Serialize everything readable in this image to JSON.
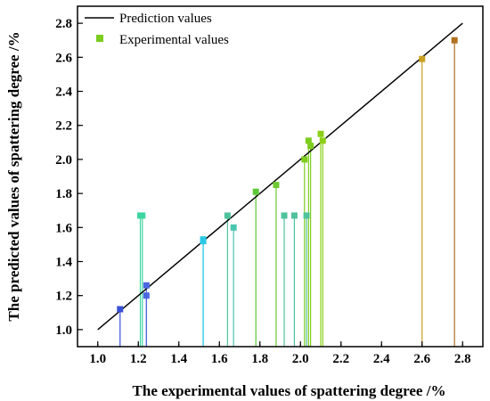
{
  "chart_data": {
    "type": "scatter",
    "title": "",
    "xlabel": "The experimental values of spattering degree /%",
    "ylabel": "The predicted values of spattering degree /%",
    "xlim": [
      0.9,
      2.9
    ],
    "ylim": [
      0.9,
      2.9
    ],
    "xticks": [
      1.0,
      1.2,
      1.4,
      1.6,
      1.8,
      2.0,
      2.2,
      2.4,
      2.6,
      2.8
    ],
    "yticks": [
      1.0,
      1.2,
      1.4,
      1.6,
      1.8,
      2.0,
      2.2,
      2.4,
      2.6,
      2.8
    ],
    "tick_labels_x": [
      "1.0",
      "1.2",
      "1.4",
      "1.6",
      "1.8",
      "2.0",
      "2.2",
      "2.4",
      "2.6",
      "2.8"
    ],
    "tick_labels_y": [
      "1.0",
      "1.2",
      "1.4",
      "1.6",
      "1.8",
      "2.0",
      "2.2",
      "2.4",
      "2.6",
      "2.8"
    ],
    "grid": false,
    "legend_position": "top-left",
    "series": [
      {
        "name": "Prediction values",
        "kind": "line",
        "color": "#000000",
        "x": [
          1.0,
          2.8
        ],
        "y": [
          1.0,
          2.8
        ]
      },
      {
        "name": "Experimental values",
        "kind": "scatter",
        "legend_color": "#7ccd1e",
        "points": [
          {
            "x": 1.11,
            "y": 1.12,
            "color": "#3a4fd6"
          },
          {
            "x": 1.21,
            "y": 1.67,
            "color": "#3ed6a0"
          },
          {
            "x": 1.22,
            "y": 1.67,
            "color": "#3ed6a0"
          },
          {
            "x": 1.24,
            "y": 1.2,
            "color": "#4a68e0"
          },
          {
            "x": 1.24,
            "y": 1.26,
            "color": "#4a68e0"
          },
          {
            "x": 1.52,
            "y": 1.53,
            "color": "#2bc8e6"
          },
          {
            "x": 1.52,
            "y": 1.52,
            "color": "#2bc8e6"
          },
          {
            "x": 1.64,
            "y": 1.67,
            "color": "#4ec29a"
          },
          {
            "x": 1.67,
            "y": 1.6,
            "color": "#48c6b0"
          },
          {
            "x": 1.78,
            "y": 1.81,
            "color": "#5cc838"
          },
          {
            "x": 1.88,
            "y": 1.85,
            "color": "#6cc830"
          },
          {
            "x": 1.92,
            "y": 1.67,
            "color": "#4ec29a"
          },
          {
            "x": 1.97,
            "y": 1.67,
            "color": "#4ec29a"
          },
          {
            "x": 2.02,
            "y": 2.0,
            "color": "#7ccd1e"
          },
          {
            "x": 2.03,
            "y": 1.67,
            "color": "#4ec29a"
          },
          {
            "x": 2.04,
            "y": 2.11,
            "color": "#7ccd1e"
          },
          {
            "x": 2.05,
            "y": 2.08,
            "color": "#7ccd1e"
          },
          {
            "x": 2.1,
            "y": 2.15,
            "color": "#8ccf18"
          },
          {
            "x": 2.11,
            "y": 2.11,
            "color": "#8ccf18"
          },
          {
            "x": 2.6,
            "y": 2.59,
            "color": "#c8a020"
          },
          {
            "x": 2.76,
            "y": 2.7,
            "color": "#b07020"
          }
        ]
      }
    ]
  }
}
